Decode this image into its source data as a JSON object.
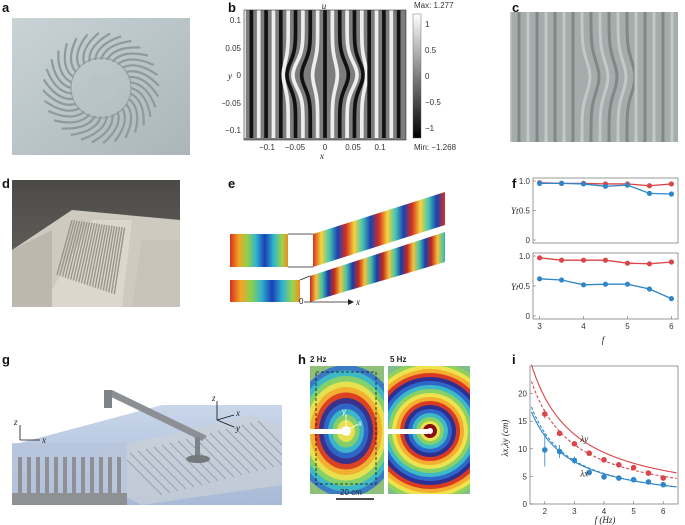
{
  "panel_labels": {
    "a": "a",
    "b": "b",
    "c": "c",
    "d": "d",
    "e": "e",
    "f": "f",
    "g": "g",
    "h": "h",
    "i": "i"
  },
  "b": {
    "title": "u",
    "colorbar_max": "Max: 1.277",
    "colorbar_min": "Min: −1.268",
    "colorbar_ticks": [
      "1",
      "0.5",
      "0",
      "−0.5",
      "−1"
    ],
    "x_ticks": [
      "−0.1",
      "−0.05",
      "0",
      "0.05",
      "0.1"
    ],
    "y_ticks": [
      "0.1",
      "0.05",
      "0",
      "−0.05",
      "−0.1"
    ],
    "xlabel": "x",
    "ylabel": "y"
  },
  "e": {
    "origin_label": "0",
    "x_label": "x"
  },
  "g": {
    "axes": [
      "z",
      "x",
      "z",
      "x",
      "y"
    ]
  },
  "h": {
    "left_title": "2 Hz",
    "right_title": "5 Hz",
    "scale_bar": "20 cm",
    "arrow_labels": [
      "y",
      "x"
    ]
  },
  "chart_data": [
    {
      "type": "line",
      "panel": "f-top",
      "ylabel": "Υt",
      "x": [
        3,
        3.5,
        4,
        4.5,
        5,
        5.5,
        6
      ],
      "ylim": [
        0,
        1
      ],
      "y_ticks": [
        "0",
        "0.5",
        "1.0"
      ],
      "series": [
        {
          "color": "#d9454a",
          "values": [
            0.97,
            0.96,
            0.96,
            0.95,
            0.95,
            0.92,
            0.95
          ]
        },
        {
          "color": "#2f86c8",
          "values": [
            0.96,
            0.96,
            0.95,
            0.91,
            0.93,
            0.79,
            0.78
          ]
        }
      ]
    },
    {
      "type": "line",
      "panel": "f-bottom",
      "ylabel": "Υr",
      "xlabel": "f",
      "x": [
        3,
        3.5,
        4,
        4.5,
        5,
        5.5,
        6
      ],
      "x_ticks": [
        "3",
        "4",
        "5",
        "6"
      ],
      "ylim": [
        0,
        1
      ],
      "y_ticks": [
        "0",
        "0.5",
        "1.0"
      ],
      "series": [
        {
          "color": "#d9454a",
          "values": [
            0.97,
            0.93,
            0.93,
            0.93,
            0.88,
            0.87,
            0.9
          ]
        },
        {
          "color": "#2f86c8",
          "values": [
            0.62,
            0.6,
            0.52,
            0.53,
            0.53,
            0.45,
            0.29
          ]
        }
      ]
    },
    {
      "type": "scatter",
      "panel": "i",
      "ylabel": "λx,λy (cm)",
      "xlabel": "f (Hz)",
      "xlim": [
        1.5,
        6.5
      ],
      "ylim": [
        0,
        25
      ],
      "x_ticks": [
        2,
        3,
        4,
        5,
        6
      ],
      "y_ticks": [
        0,
        5,
        10,
        15,
        20
      ],
      "annotations": [
        "λy",
        "λx"
      ],
      "series": [
        {
          "color": "#d9454a",
          "points": [
            [
              2,
              16.3
            ],
            [
              2.5,
              12.8
            ],
            [
              3,
              10.9
            ],
            [
              3.5,
              9.2
            ],
            [
              4,
              8.0
            ],
            [
              4.5,
              7.1
            ],
            [
              5,
              6.6
            ],
            [
              5.5,
              5.6
            ],
            [
              6,
              4.7
            ]
          ],
          "errors": [
            0.8,
            0.5,
            0.4,
            0.3,
            0.3,
            0.3,
            0.3,
            0.3,
            0.3
          ]
        },
        {
          "color": "#2f86c8",
          "points": [
            [
              2,
              9.8
            ],
            [
              2.5,
              9.5
            ],
            [
              3,
              7.9
            ],
            [
              3.5,
              5.7
            ],
            [
              4,
              4.9
            ],
            [
              4.5,
              4.7
            ],
            [
              5,
              4.4
            ],
            [
              5.5,
              4.0
            ],
            [
              6,
              3.5
            ]
          ],
          "errors": [
            3.0,
            1.2,
            0.7,
            0.4,
            0.3,
            0.3,
            0.3,
            0.3,
            0.3
          ]
        }
      ]
    }
  ]
}
